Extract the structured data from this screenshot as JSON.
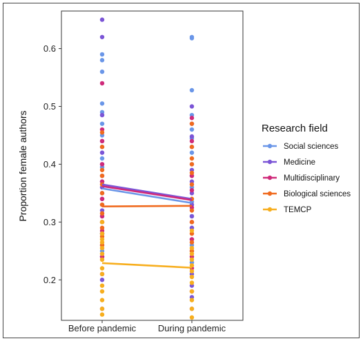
{
  "chart_data": {
    "type": "scatter",
    "ylabel": "Proportion female authors",
    "xlabel": "",
    "categories": [
      "Before pandemic",
      "During pandemic"
    ],
    "ylim": [
      0.13,
      0.665
    ],
    "yticks": [
      "0.2",
      "0.3",
      "0.4",
      "0.5",
      "0.6"
    ],
    "grid": false,
    "legend": {
      "title": "Research field",
      "placement": "right"
    },
    "series": [
      {
        "name": "Social sciences",
        "color": "#6a96e8",
        "mean_values": [
          0.358,
          0.333
        ],
        "before": [
          0.59,
          0.58,
          0.56,
          0.505,
          0.49,
          0.47,
          0.45,
          0.43,
          0.41,
          0.395,
          0.37,
          0.35,
          0.33,
          0.31,
          0.28,
          0.25
        ],
        "during": [
          0.62,
          0.618,
          0.528,
          0.485,
          0.46,
          0.445,
          0.42,
          0.4,
          0.38,
          0.36,
          0.335,
          0.31,
          0.29,
          0.26,
          0.23
        ]
      },
      {
        "name": "Medicine",
        "color": "#7b55d6",
        "mean_values": [
          0.365,
          0.34
        ],
        "before": [
          0.65,
          0.62,
          0.485,
          0.44,
          0.42,
          0.4,
          0.38,
          0.36,
          0.34,
          0.32,
          0.3,
          0.28,
          0.26,
          0.24,
          0.2,
          0.15
        ],
        "during": [
          0.5,
          0.47,
          0.448,
          0.43,
          0.39,
          0.37,
          0.35,
          0.33,
          0.31,
          0.29,
          0.27,
          0.25,
          0.21,
          0.19,
          0.17,
          0.15
        ]
      },
      {
        "name": "Multidisciplinary",
        "color": "#cf2a7a",
        "mean_values": [
          0.362,
          0.338
        ],
        "before": [
          0.54,
          0.46,
          0.44,
          0.4,
          0.37,
          0.34,
          0.31,
          0.285,
          0.24,
          0.21
        ],
        "during": [
          0.48,
          0.44,
          0.38,
          0.355,
          0.325,
          0.3,
          0.27,
          0.24,
          0.22,
          0.18
        ]
      },
      {
        "name": "Biological sciences",
        "color": "#f06a1e",
        "mean_values": [
          0.327,
          0.328
        ],
        "before": [
          0.455,
          0.43,
          0.39,
          0.38,
          0.365,
          0.35,
          0.33,
          0.315,
          0.3,
          0.29,
          0.275,
          0.26
        ],
        "during": [
          0.47,
          0.43,
          0.41,
          0.4,
          0.385,
          0.365,
          0.34,
          0.32,
          0.3,
          0.28,
          0.265,
          0.25
        ]
      },
      {
        "name": "TEMCP",
        "color": "#f7ae1e",
        "mean_values": [
          0.229,
          0.221
        ],
        "before": [
          0.3,
          0.28,
          0.27,
          0.265,
          0.255,
          0.245,
          0.235,
          0.22,
          0.21,
          0.19,
          0.18,
          0.165,
          0.15,
          0.14
        ],
        "during": [
          0.285,
          0.255,
          0.245,
          0.235,
          0.225,
          0.215,
          0.205,
          0.195,
          0.18,
          0.165,
          0.15,
          0.135
        ]
      }
    ]
  }
}
